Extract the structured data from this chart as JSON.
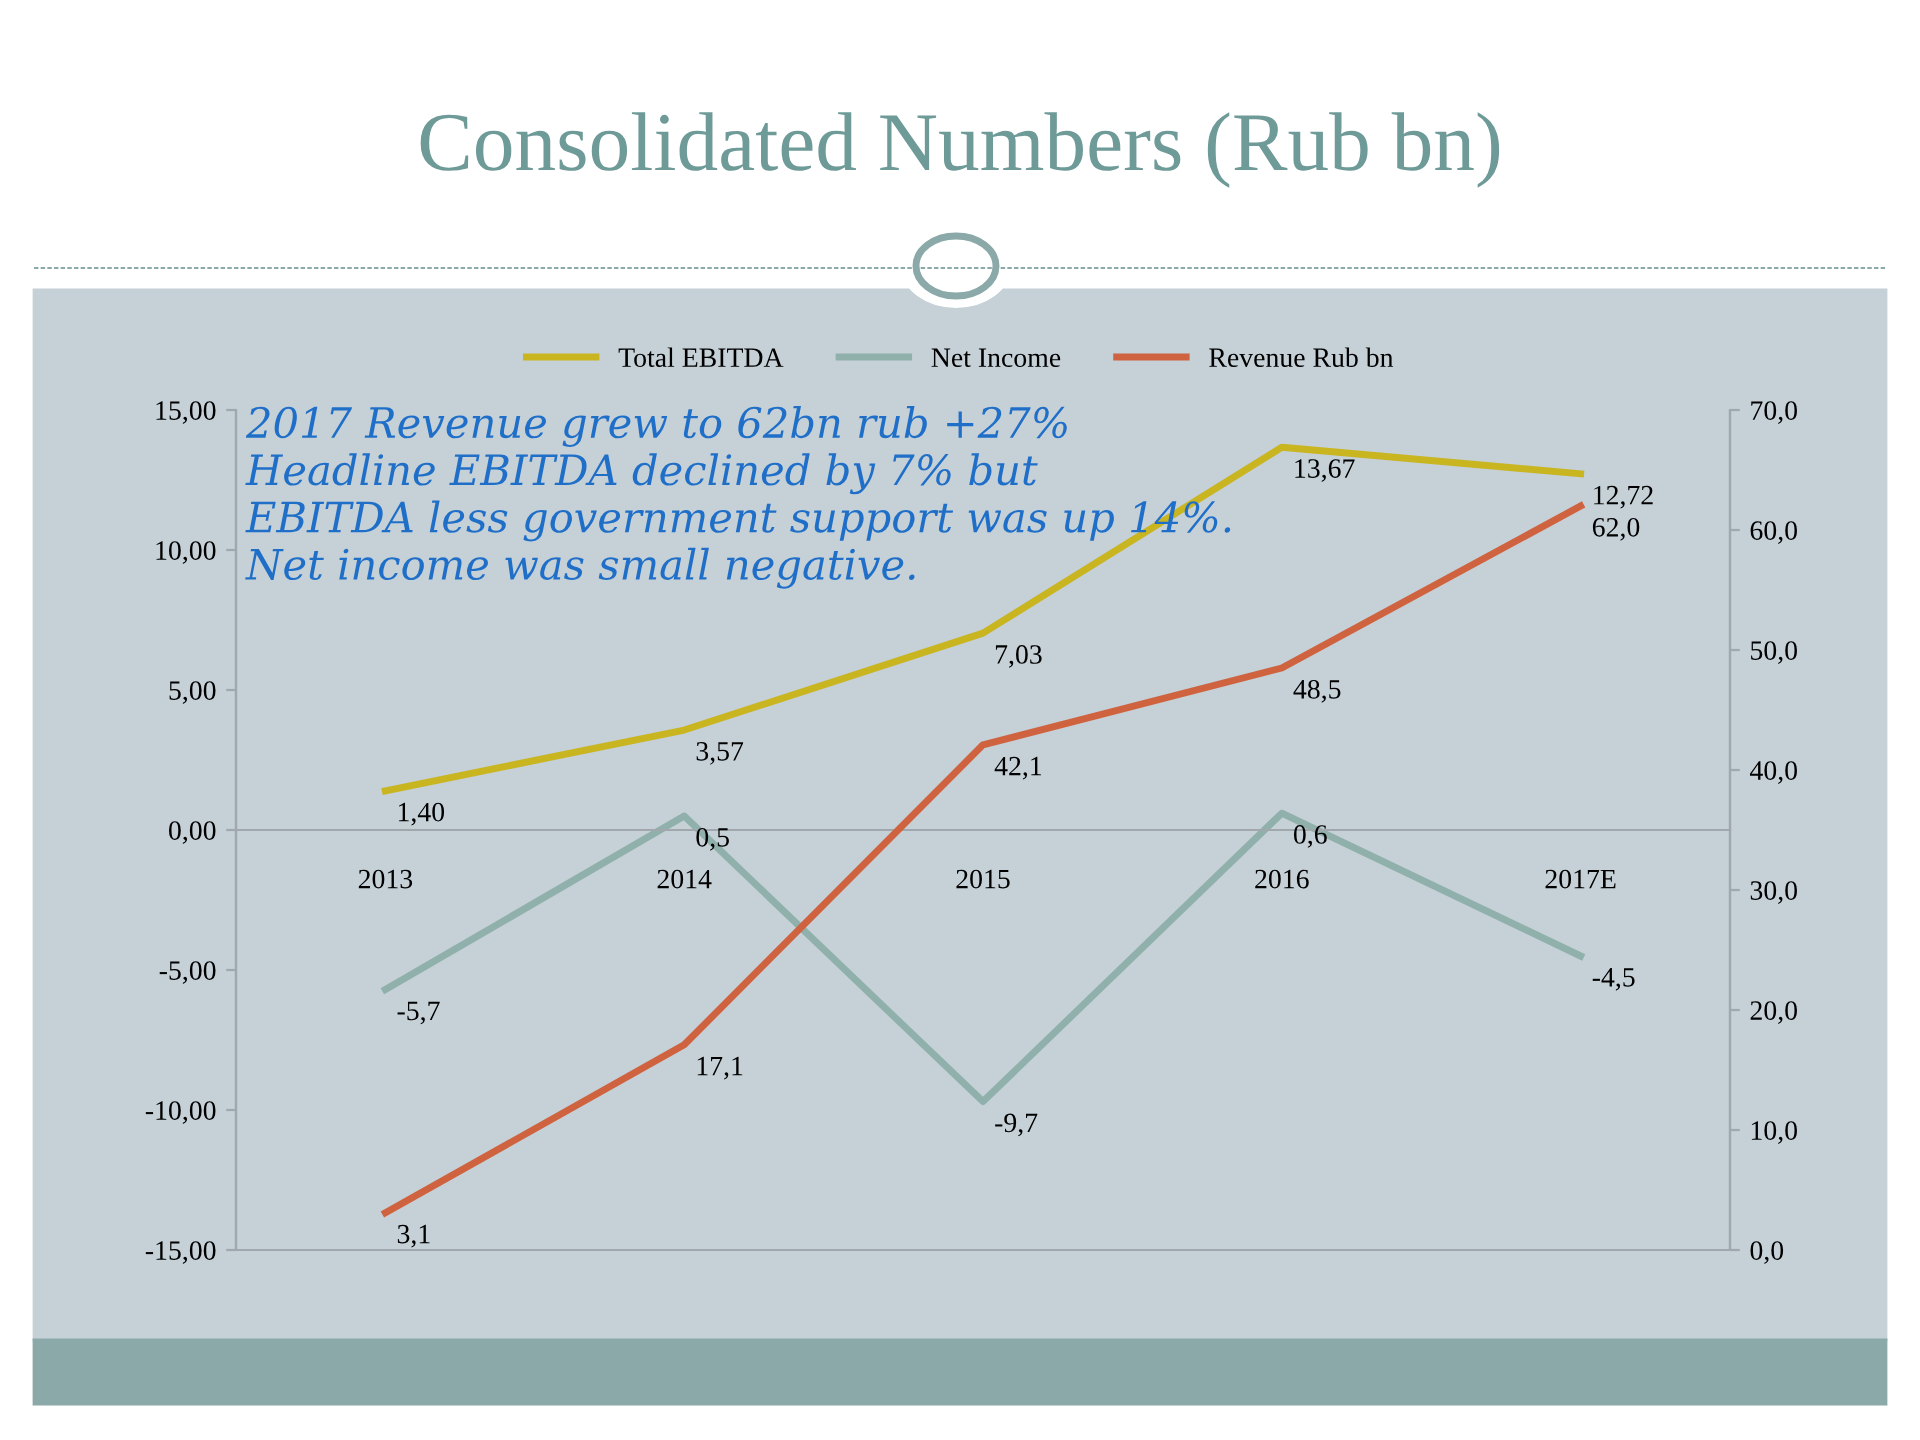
{
  "chart_data": {
    "type": "line",
    "title": "Consolidated Numbers (Rub bn)",
    "categories": [
      "2013",
      "2014",
      "2015",
      "2016",
      "2017E"
    ],
    "series": [
      {
        "name": "Total EBITDA",
        "color": "#c9b520",
        "values": [
          1.4,
          3.57,
          7.03,
          13.67,
          12.72
        ],
        "value_labels": [
          "1,40",
          "3,57",
          "7,03",
          "13,67",
          "12,72"
        ]
      },
      {
        "name": "Net Income",
        "color": "#8fb0ab",
        "values": [
          -5.7,
          0.5,
          -9.7,
          0.6,
          -4.5
        ],
        "value_labels": [
          "-5,7",
          "0,5",
          "-9,7",
          "0,6",
          "-4,5"
        ]
      },
      {
        "name": "Revenue Rub bn",
        "color": "#d0633f",
        "axis": "y2",
        "values": [
          3.1,
          17.1,
          42.1,
          48.5,
          62.0
        ],
        "value_labels": [
          "3,1",
          "17,1",
          "42,1",
          "48,5",
          "62,0"
        ]
      }
    ],
    "ylim": [
      -15,
      15
    ],
    "yticks": [
      {
        "value": -15,
        "label": "-15,00"
      },
      {
        "value": -10,
        "label": "-10,00"
      },
      {
        "value": -5,
        "label": "-5,00"
      },
      {
        "value": 0,
        "label": "0,00"
      },
      {
        "value": 5,
        "label": "5,00"
      },
      {
        "value": 10,
        "label": "10,00"
      },
      {
        "value": 15,
        "label": "15,00"
      }
    ],
    "y2lim": [
      0,
      70
    ],
    "y2ticks": [
      {
        "value": 0,
        "label": "0,0"
      },
      {
        "value": 10,
        "label": "10,0"
      },
      {
        "value": 20,
        "label": "20,0"
      },
      {
        "value": 30,
        "label": "30,0"
      },
      {
        "value": 40,
        "label": "40,0"
      },
      {
        "value": 50,
        "label": "50,0"
      },
      {
        "value": 60,
        "label": "60,0"
      },
      {
        "value": 70,
        "label": "70,0"
      }
    ],
    "legend": "top",
    "grid": false,
    "marker": "none",
    "line_style": "solid",
    "annotations": [
      "2017 Revenue grew to 62bn rub +27%\nHeadline EBITDA declined by 7% but\nEBITDA less government support was up 14%.\nNet income was small negative."
    ]
  }
}
